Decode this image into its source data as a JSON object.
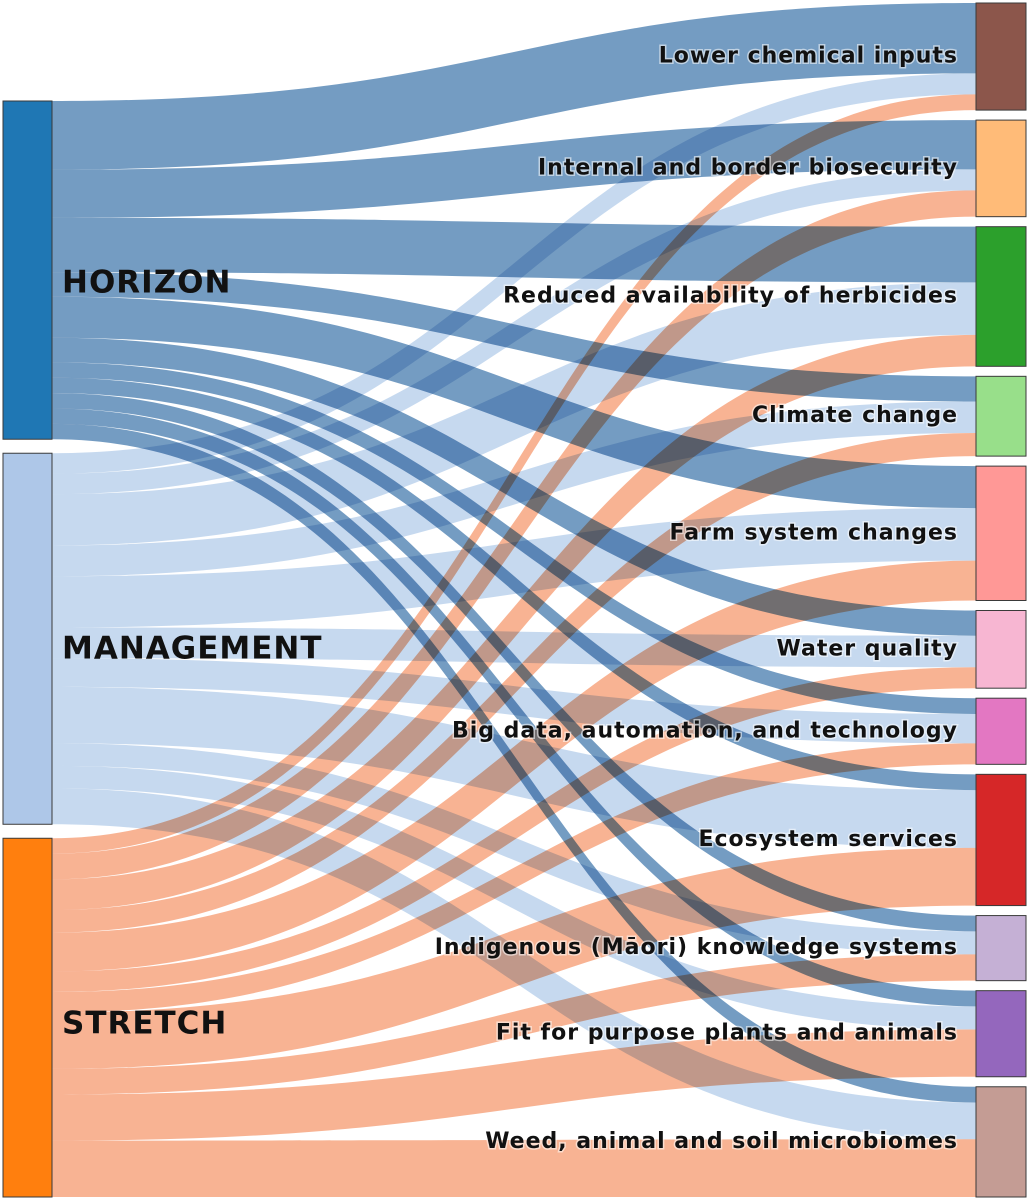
{
  "sources": [
    {
      "id": "horizon",
      "label": "HORIZON",
      "color": "#1f77b4",
      "flow_color": "#3f76ab"
    },
    {
      "id": "management",
      "label": "MANAGEMENT",
      "color": "#aec7e8",
      "flow_color": "#a8c4e6"
    },
    {
      "id": "stretch",
      "label": "STRETCH",
      "color": "#ff7f0e",
      "flow_color": "#f5956a"
    }
  ],
  "targets": [
    {
      "id": "lower-chemical-inputs",
      "label": "Lower chemical inputs",
      "color": "#8c564b"
    },
    {
      "id": "internal-border-biosecurity",
      "label": "Internal and border biosecurity",
      "color": "#ffbb78"
    },
    {
      "id": "reduced-herbicides",
      "label": "Reduced availability of herbicides",
      "color": "#2ca02c"
    },
    {
      "id": "climate-change",
      "label": "Climate change",
      "color": "#98df8a"
    },
    {
      "id": "farm-system-changes",
      "label": "Farm system changes",
      "color": "#ff9896"
    },
    {
      "id": "water-quality",
      "label": "Water quality",
      "color": "#f7b6d2"
    },
    {
      "id": "big-data",
      "label": "Big data, automation, and technology",
      "color": "#e377c2"
    },
    {
      "id": "ecosystem-services",
      "label": "Ecosystem services",
      "color": "#d62728"
    },
    {
      "id": "indigenous-knowledge",
      "label": "Indigenous (Māori) knowledge systems",
      "color": "#c5b0d5"
    },
    {
      "id": "fit-for-purpose",
      "label": "Fit for purpose plants and animals",
      "color": "#9467bd"
    },
    {
      "id": "weed-animal-soil",
      "label": "Weed, animal and soil microbiomes",
      "color": "#c49c94"
    }
  ],
  "flows": [
    {
      "source": "horizon",
      "target": "lower-chemical-inputs",
      "value": 67
    },
    {
      "source": "horizon",
      "target": "internal-border-biosecurity",
      "value": 47
    },
    {
      "source": "horizon",
      "target": "reduced-herbicides",
      "value": 53
    },
    {
      "source": "horizon",
      "target": "climate-change",
      "value": 24
    },
    {
      "source": "horizon",
      "target": "farm-system-changes",
      "value": 40
    },
    {
      "source": "horizon",
      "target": "water-quality",
      "value": 24
    },
    {
      "source": "horizon",
      "target": "big-data",
      "value": 15
    },
    {
      "source": "horizon",
      "target": "ecosystem-services",
      "value": 15
    },
    {
      "source": "horizon",
      "target": "indigenous-knowledge",
      "value": 15
    },
    {
      "source": "horizon",
      "target": "fit-for-purpose",
      "value": 15
    },
    {
      "source": "horizon",
      "target": "weed-animal-soil",
      "value": 15
    },
    {
      "source": "management",
      "target": "lower-chemical-inputs",
      "value": 20
    },
    {
      "source": "management",
      "target": "internal-border-biosecurity",
      "value": 20
    },
    {
      "source": "management",
      "target": "reduced-herbicides",
      "value": 50
    },
    {
      "source": "management",
      "target": "climate-change",
      "value": 30
    },
    {
      "source": "management",
      "target": "farm-system-changes",
      "value": 50
    },
    {
      "source": "management",
      "target": "water-quality",
      "value": 30
    },
    {
      "source": "management",
      "target": "big-data",
      "value": 28
    },
    {
      "source": "management",
      "target": "ecosystem-services",
      "value": 55
    },
    {
      "source": "management",
      "target": "indigenous-knowledge",
      "value": 22
    },
    {
      "source": "management",
      "target": "fit-for-purpose",
      "value": 22
    },
    {
      "source": "management",
      "target": "weed-animal-soil",
      "value": 35
    },
    {
      "source": "stretch",
      "target": "lower-chemical-inputs",
      "value": 15
    },
    {
      "source": "stretch",
      "target": "internal-border-biosecurity",
      "value": 25
    },
    {
      "source": "stretch",
      "target": "reduced-herbicides",
      "value": 30
    },
    {
      "source": "stretch",
      "target": "climate-change",
      "value": 22
    },
    {
      "source": "stretch",
      "target": "farm-system-changes",
      "value": 38
    },
    {
      "source": "stretch",
      "target": "water-quality",
      "value": 20
    },
    {
      "source": "stretch",
      "target": "big-data",
      "value": 20
    },
    {
      "source": "stretch",
      "target": "ecosystem-services",
      "value": 55
    },
    {
      "source": "stretch",
      "target": "indigenous-knowledge",
      "value": 25
    },
    {
      "source": "stretch",
      "target": "fit-for-purpose",
      "value": 45
    },
    {
      "source": "stretch",
      "target": "weed-animal-soil",
      "value": 55
    }
  ]
}
